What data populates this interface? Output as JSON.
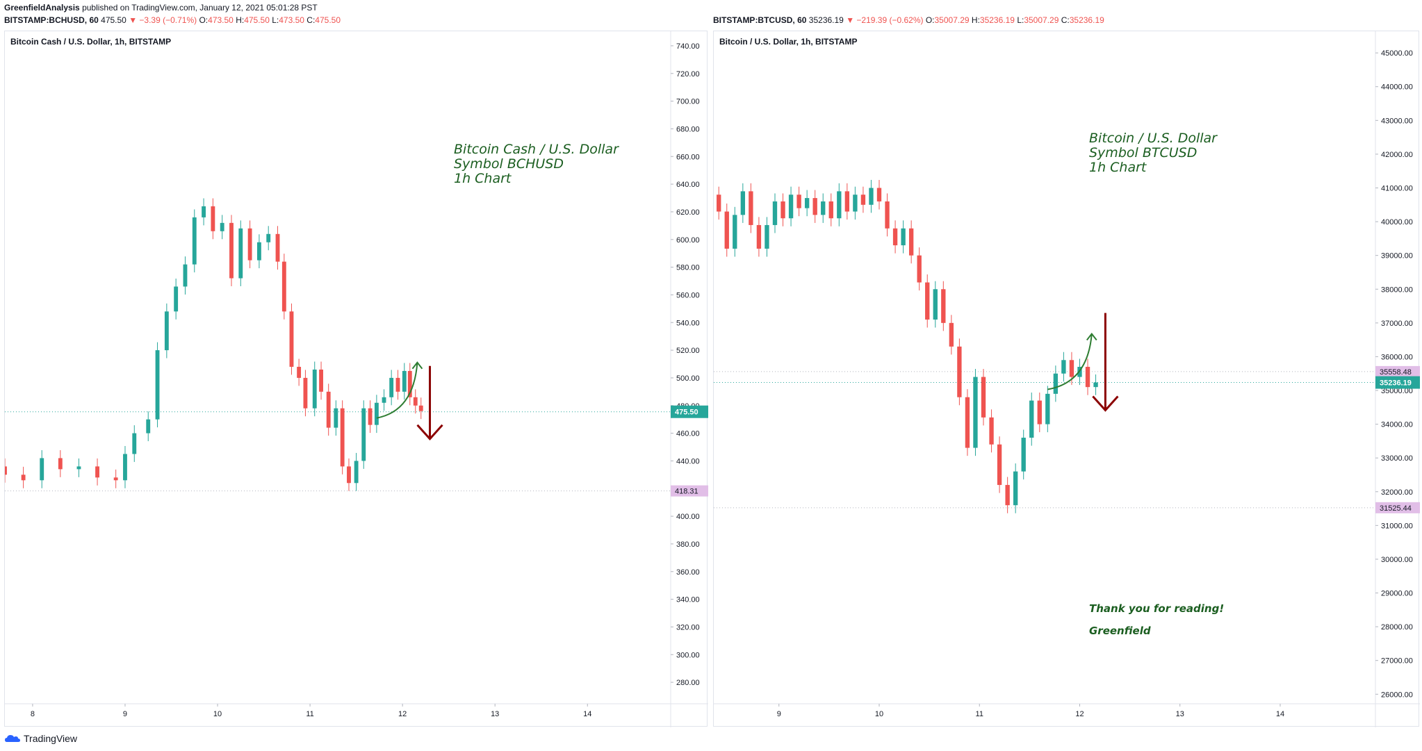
{
  "header": {
    "author": "GreenfieldAnalysis",
    "published": "published on TradingView.com, January 12, 2021 05:01:28 PST"
  },
  "left": {
    "symbol": "BITSTAMP:BCHUSD, 60",
    "last": "475.50",
    "change": "▼ −3.39 (−0.71%)",
    "o_label": "O:",
    "o": "473.50",
    "h_label": "H:",
    "h": "475.50",
    "l_label": "L:",
    "l": "473.50",
    "c_label": "C:",
    "c": "475.50",
    "title": "Bitcoin Cash / U.S. Dollar, 1h, BITSTAMP",
    "note": [
      "Bitcoin Cash / U.S. Dollar",
      "Symbol BCHUSD",
      "1h Chart"
    ]
  },
  "right": {
    "symbol": "BITSTAMP:BTCUSD, 60",
    "last": "35236.19",
    "change": "▼ −219.39 (−0.62%)",
    "o_label": "O:",
    "o": "35007.29",
    "h_label": "H:",
    "h": "35236.19",
    "l_label": "L:",
    "l": "35007.29",
    "c_label": "C:",
    "c": "35236.19",
    "title": "Bitcoin / U.S. Dollar, 1h, BITSTAMP",
    "note": [
      "Bitcoin / U.S. Dollar",
      "Symbol BTCUSD",
      "1h Chart"
    ],
    "thanks": "Thank you for reading!",
    "signature": "Greenfield"
  },
  "footer": {
    "brand": "TradingView"
  },
  "colors": {
    "up": "#26a69a",
    "down": "#ef5350",
    "annotation_green": "#1b5e20",
    "arrow_red": "#8b0000",
    "level_tag": "#e1bee7"
  },
  "chart_data": [
    {
      "type": "candlestick",
      "title": "Bitcoin Cash / U.S. Dollar, 1h, BITSTAMP",
      "ylim": [
        270,
        750
      ],
      "yticks": [
        "740.00",
        "720.00",
        "700.00",
        "680.00",
        "660.00",
        "640.00",
        "620.00",
        "600.00",
        "580.00",
        "560.00",
        "540.00",
        "520.00",
        "500.00",
        "480.00",
        "460.00",
        "440.00",
        "420.00",
        "400.00",
        "380.00",
        "360.00",
        "340.00",
        "320.00",
        "300.00",
        "280.00"
      ],
      "xticks": [
        "8",
        "9",
        "10",
        "11",
        "12",
        "13",
        "14"
      ],
      "x_range_days": [
        7.7,
        14.9
      ],
      "last_price": 475.5,
      "last_price_label": "475.50",
      "level": 418.31,
      "level_label": "418.31",
      "series": [
        {
          "day": 7.7,
          "o": 436,
          "c": 430
        },
        {
          "day": 7.9,
          "o": 430,
          "c": 426
        },
        {
          "day": 8.1,
          "o": 426,
          "c": 442
        },
        {
          "day": 8.3,
          "o": 442,
          "c": 434
        },
        {
          "day": 8.5,
          "o": 434,
          "c": 436
        },
        {
          "day": 8.7,
          "o": 436,
          "c": 428
        },
        {
          "day": 8.9,
          "o": 428,
          "c": 426
        },
        {
          "day": 9.0,
          "o": 426,
          "c": 445
        },
        {
          "day": 9.1,
          "o": 445,
          "c": 460
        },
        {
          "day": 9.25,
          "o": 460,
          "c": 470
        },
        {
          "day": 9.35,
          "o": 470,
          "c": 520
        },
        {
          "day": 9.45,
          "o": 520,
          "c": 548
        },
        {
          "day": 9.55,
          "o": 548,
          "c": 566
        },
        {
          "day": 9.65,
          "o": 566,
          "c": 582
        },
        {
          "day": 9.75,
          "o": 582,
          "c": 616
        },
        {
          "day": 9.85,
          "o": 616,
          "c": 624
        },
        {
          "day": 9.95,
          "o": 624,
          "c": 606
        },
        {
          "day": 10.05,
          "o": 606,
          "c": 612
        },
        {
          "day": 10.15,
          "o": 612,
          "c": 572
        },
        {
          "day": 10.25,
          "o": 572,
          "c": 608
        },
        {
          "day": 10.35,
          "o": 608,
          "c": 585
        },
        {
          "day": 10.45,
          "o": 585,
          "c": 598
        },
        {
          "day": 10.55,
          "o": 598,
          "c": 604
        },
        {
          "day": 10.65,
          "o": 604,
          "c": 584
        },
        {
          "day": 10.72,
          "o": 584,
          "c": 548
        },
        {
          "day": 10.8,
          "o": 548,
          "c": 508
        },
        {
          "day": 10.88,
          "o": 508,
          "c": 500
        },
        {
          "day": 10.95,
          "o": 500,
          "c": 478
        },
        {
          "day": 11.05,
          "o": 478,
          "c": 506
        },
        {
          "day": 11.12,
          "o": 506,
          "c": 490
        },
        {
          "day": 11.2,
          "o": 490,
          "c": 464
        },
        {
          "day": 11.28,
          "o": 464,
          "c": 478
        },
        {
          "day": 11.35,
          "o": 478,
          "c": 436
        },
        {
          "day": 11.42,
          "o": 436,
          "c": 424
        },
        {
          "day": 11.5,
          "o": 424,
          "c": 440
        },
        {
          "day": 11.58,
          "o": 440,
          "c": 478
        },
        {
          "day": 11.65,
          "o": 478,
          "c": 466
        },
        {
          "day": 11.72,
          "o": 466,
          "c": 482
        },
        {
          "day": 11.8,
          "o": 482,
          "c": 486
        },
        {
          "day": 11.88,
          "o": 486,
          "c": 500
        },
        {
          "day": 11.95,
          "o": 500,
          "c": 490
        },
        {
          "day": 12.02,
          "o": 490,
          "c": 505
        },
        {
          "day": 12.08,
          "o": 505,
          "c": 486
        },
        {
          "day": 12.14,
          "o": 486,
          "c": 480
        },
        {
          "day": 12.2,
          "o": 480,
          "c": 476
        }
      ]
    },
    {
      "type": "candlestick",
      "title": "Bitcoin / U.S. Dollar, 1h, BITSTAMP",
      "ylim": [
        25800,
        45600
      ],
      "yticks": [
        "45000.00",
        "44000.00",
        "43000.00",
        "42000.00",
        "41000.00",
        "40000.00",
        "39000.00",
        "38000.00",
        "37000.00",
        "36000.00",
        "35000.00",
        "34000.00",
        "33000.00",
        "32000.00",
        "31000.00",
        "30000.00",
        "29000.00",
        "28000.00",
        "27000.00",
        "26000.00"
      ],
      "xticks": [
        "9",
        "10",
        "11",
        "12",
        "13",
        "14"
      ],
      "x_range_days": [
        8.35,
        14.95
      ],
      "last_price": 35236.19,
      "last_price_label": "35236.19",
      "level_upper": 35558.48,
      "level_upper_label": "35558.48",
      "level": 31525.44,
      "level_label": "31525.44",
      "series": [
        {
          "day": 8.4,
          "o": 40800,
          "c": 40300
        },
        {
          "day": 8.48,
          "o": 40300,
          "c": 39200
        },
        {
          "day": 8.56,
          "o": 39200,
          "c": 40200
        },
        {
          "day": 8.64,
          "o": 40200,
          "c": 40900
        },
        {
          "day": 8.72,
          "o": 40900,
          "c": 39900
        },
        {
          "day": 8.8,
          "o": 39900,
          "c": 39200
        },
        {
          "day": 8.88,
          "o": 39200,
          "c": 39900
        },
        {
          "day": 8.96,
          "o": 39900,
          "c": 40600
        },
        {
          "day": 9.04,
          "o": 40600,
          "c": 40100
        },
        {
          "day": 9.12,
          "o": 40100,
          "c": 40800
        },
        {
          "day": 9.2,
          "o": 40800,
          "c": 40400
        },
        {
          "day": 9.28,
          "o": 40400,
          "c": 40700
        },
        {
          "day": 9.36,
          "o": 40700,
          "c": 40200
        },
        {
          "day": 9.44,
          "o": 40200,
          "c": 40600
        },
        {
          "day": 9.52,
          "o": 40600,
          "c": 40100
        },
        {
          "day": 9.6,
          "o": 40100,
          "c": 40900
        },
        {
          "day": 9.68,
          "o": 40900,
          "c": 40300
        },
        {
          "day": 9.76,
          "o": 40300,
          "c": 40800
        },
        {
          "day": 9.84,
          "o": 40800,
          "c": 40500
        },
        {
          "day": 9.92,
          "o": 40500,
          "c": 41000
        },
        {
          "day": 10.0,
          "o": 41000,
          "c": 40600
        },
        {
          "day": 10.08,
          "o": 40600,
          "c": 39800
        },
        {
          "day": 10.16,
          "o": 39800,
          "c": 39300
        },
        {
          "day": 10.24,
          "o": 39300,
          "c": 39800
        },
        {
          "day": 10.32,
          "o": 39800,
          "c": 39000
        },
        {
          "day": 10.4,
          "o": 39000,
          "c": 38200
        },
        {
          "day": 10.48,
          "o": 38200,
          "c": 37100
        },
        {
          "day": 10.56,
          "o": 37100,
          "c": 38000
        },
        {
          "day": 10.64,
          "o": 38000,
          "c": 37000
        },
        {
          "day": 10.72,
          "o": 37000,
          "c": 36300
        },
        {
          "day": 10.8,
          "o": 36300,
          "c": 34800
        },
        {
          "day": 10.88,
          "o": 34800,
          "c": 33300
        },
        {
          "day": 10.96,
          "o": 33300,
          "c": 35400
        },
        {
          "day": 11.04,
          "o": 35400,
          "c": 34200
        },
        {
          "day": 11.12,
          "o": 34200,
          "c": 33400
        },
        {
          "day": 11.2,
          "o": 33400,
          "c": 32200
        },
        {
          "day": 11.28,
          "o": 32200,
          "c": 31600
        },
        {
          "day": 11.36,
          "o": 31600,
          "c": 32600
        },
        {
          "day": 11.44,
          "o": 32600,
          "c": 33600
        },
        {
          "day": 11.52,
          "o": 33600,
          "c": 34700
        },
        {
          "day": 11.6,
          "o": 34700,
          "c": 34000
        },
        {
          "day": 11.68,
          "o": 34000,
          "c": 34900
        },
        {
          "day": 11.76,
          "o": 34900,
          "c": 35500
        },
        {
          "day": 11.84,
          "o": 35500,
          "c": 35900
        },
        {
          "day": 11.92,
          "o": 35900,
          "c": 35400
        },
        {
          "day": 12.0,
          "o": 35400,
          "c": 35700
        },
        {
          "day": 12.08,
          "o": 35700,
          "c": 35100
        },
        {
          "day": 12.16,
          "o": 35100,
          "c": 35236
        }
      ]
    }
  ]
}
